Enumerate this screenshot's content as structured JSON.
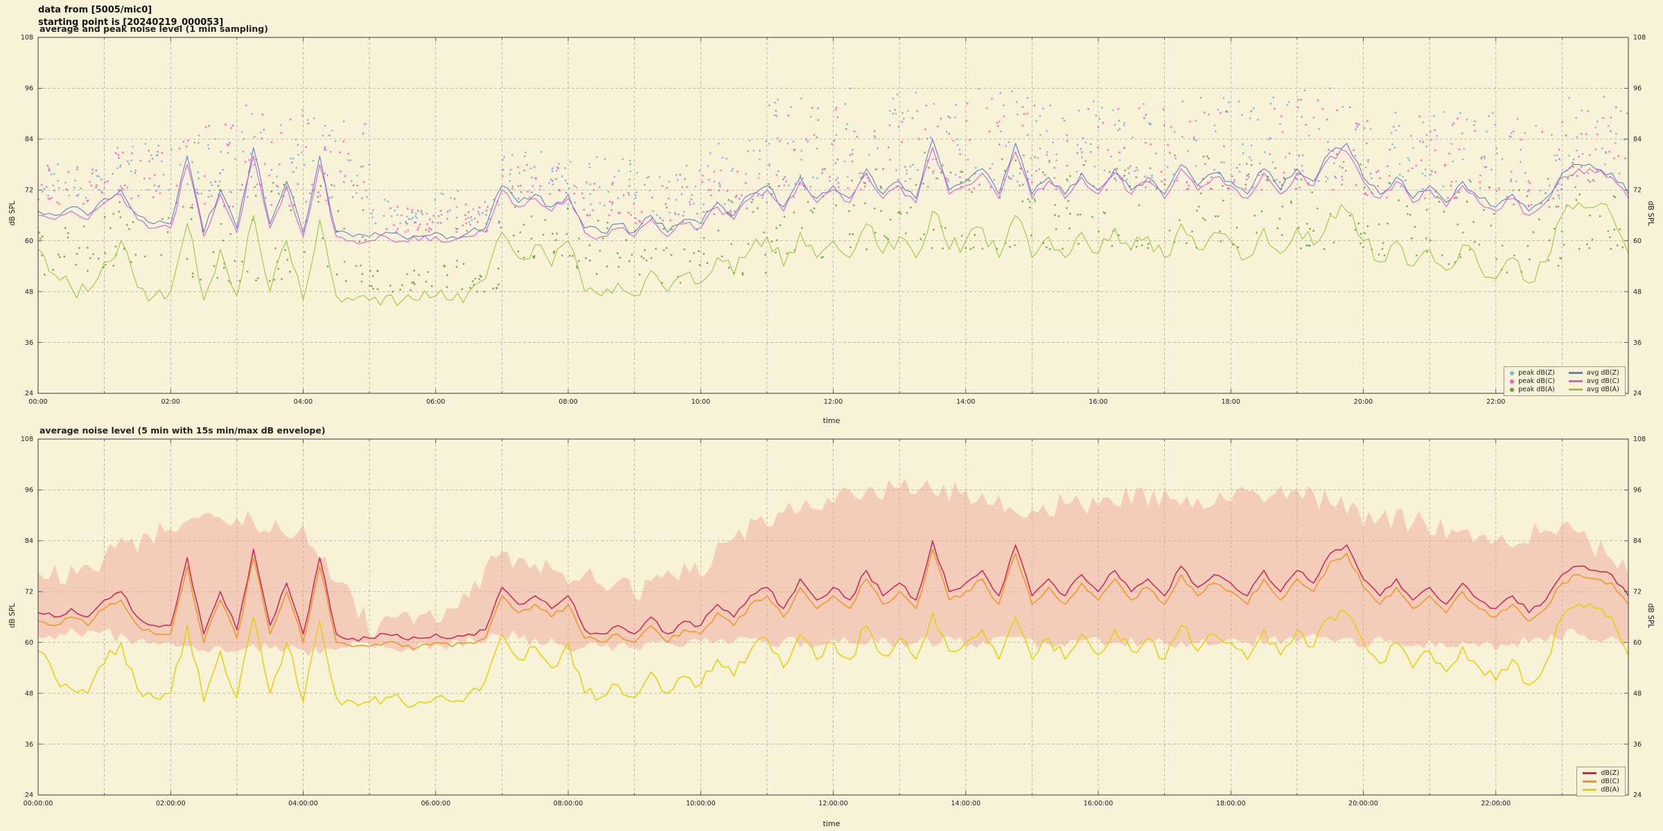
{
  "header": {
    "line1": "data from [5005/mic0]",
    "line2": "starting point is [20240219_000053]"
  },
  "chart_data": [
    {
      "type": "line",
      "title": "average and peak noise level (1 min sampling)",
      "xlabel": "time",
      "ylabel": "dB SPL",
      "ylabel_right": "dB SPL",
      "ylim": [
        24,
        108
      ],
      "yticks": [
        24,
        36,
        48,
        60,
        72,
        84,
        96,
        108
      ],
      "xlim_hours": [
        0,
        24
      ],
      "xtick_hours": [
        0,
        2,
        4,
        6,
        8,
        10,
        12,
        14,
        16,
        18,
        20,
        22
      ],
      "xtick_labels": [
        "00:00",
        "02:00",
        "04:00",
        "06:00",
        "08:00",
        "10:00",
        "12:00",
        "14:00",
        "16:00",
        "18:00",
        "20:00",
        "22:00"
      ],
      "x_step_hours": 0.25,
      "grid": true,
      "legend_position": "bottom-right",
      "scatter": [
        {
          "name": "peak dB(Z)",
          "color": "#74b2e0",
          "dots_per_hour": 26,
          "hourly_lo": [
            70,
            72,
            70,
            70,
            70,
            64,
            64,
            72,
            68,
            66,
            68,
            72,
            74,
            74,
            74,
            74,
            74,
            74,
            74,
            74,
            72,
            72,
            70,
            74
          ],
          "hourly_hi": [
            80,
            84,
            90,
            92,
            90,
            70,
            72,
            84,
            80,
            78,
            84,
            94,
            96,
            97,
            96,
            94,
            94,
            95,
            94,
            96,
            92,
            92,
            90,
            94
          ]
        },
        {
          "name": "peak dB(C)",
          "color": "#ee62c0",
          "dots_per_hour": 26,
          "hourly_lo": [
            68,
            70,
            68,
            68,
            68,
            62,
            62,
            70,
            66,
            64,
            66,
            70,
            72,
            72,
            72,
            72,
            72,
            72,
            72,
            72,
            70,
            70,
            68,
            72
          ],
          "hourly_hi": [
            78,
            82,
            88,
            90,
            88,
            68,
            70,
            82,
            78,
            76,
            82,
            92,
            94,
            95,
            94,
            92,
            92,
            93,
            92,
            94,
            90,
            90,
            88,
            92
          ]
        },
        {
          "name": "peak dB(A)",
          "color": "#63a33c",
          "dots_per_hour": 22,
          "hourly_lo": [
            52,
            54,
            50,
            50,
            50,
            48,
            48,
            56,
            52,
            50,
            52,
            56,
            58,
            58,
            58,
            58,
            58,
            58,
            58,
            58,
            56,
            54,
            52,
            58
          ],
          "hourly_hi": [
            66,
            70,
            74,
            76,
            74,
            54,
            56,
            72,
            66,
            64,
            70,
            78,
            80,
            82,
            80,
            78,
            78,
            80,
            78,
            82,
            76,
            74,
            72,
            78
          ]
        }
      ],
      "series": [
        {
          "name": "avg dB(Z)",
          "color": "#5b82c3",
          "lw": 1.1,
          "jitter": 1.0,
          "values": [
            67,
            66,
            68,
            66,
            70,
            72,
            66,
            64,
            64,
            80,
            62,
            72,
            63,
            82,
            64,
            74,
            62,
            80,
            62,
            61,
            61,
            62,
            61,
            61,
            62,
            61,
            62,
            63,
            73,
            69,
            71,
            68,
            71,
            63,
            62,
            64,
            62,
            66,
            62,
            65,
            64,
            69,
            66,
            71,
            73,
            68,
            75,
            70,
            73,
            70,
            77,
            71,
            74,
            70,
            84,
            72,
            74,
            77,
            71,
            83,
            71,
            75,
            71,
            76,
            72,
            77,
            72,
            75,
            71,
            78,
            73,
            76,
            74,
            71,
            77,
            72,
            77,
            74,
            81,
            83,
            75,
            71,
            75,
            70,
            73,
            69,
            74,
            70,
            68,
            71,
            67,
            70,
            76,
            78,
            77,
            76,
            71
          ]
        },
        {
          "name": "avg dB(C)",
          "color": "#d65fd2",
          "lw": 1.1,
          "jitter": 1.0,
          "values": [
            66,
            65,
            67,
            65,
            69,
            71,
            65,
            63,
            63,
            78,
            61,
            71,
            62,
            80,
            63,
            73,
            61,
            78,
            61,
            60,
            60,
            61,
            60,
            60,
            61,
            60,
            61,
            62,
            72,
            68,
            70,
            67,
            70,
            62,
            61,
            63,
            61,
            65,
            61,
            64,
            63,
            68,
            65,
            70,
            72,
            67,
            74,
            69,
            72,
            69,
            76,
            70,
            73,
            69,
            82,
            71,
            73,
            76,
            70,
            81,
            70,
            74,
            70,
            75,
            71,
            76,
            71,
            74,
            70,
            77,
            72,
            75,
            73,
            70,
            76,
            71,
            76,
            73,
            80,
            81,
            74,
            70,
            74,
            69,
            72,
            68,
            73,
            69,
            67,
            70,
            66,
            69,
            75,
            77,
            76,
            75,
            70
          ]
        },
        {
          "name": "avg dB(A)",
          "color": "#96c83d",
          "lw": 1.1,
          "jitter": 2.2,
          "values": [
            58,
            52,
            49,
            48,
            55,
            60,
            49,
            47,
            48,
            64,
            46,
            58,
            47,
            66,
            48,
            60,
            46,
            65,
            47,
            46,
            46,
            47,
            46,
            46,
            47,
            46,
            48,
            51,
            62,
            56,
            59,
            54,
            60,
            48,
            47,
            50,
            47,
            53,
            48,
            52,
            50,
            56,
            52,
            58,
            61,
            54,
            62,
            56,
            60,
            56,
            64,
            57,
            61,
            56,
            67,
            58,
            60,
            63,
            56,
            66,
            56,
            61,
            56,
            62,
            57,
            63,
            58,
            61,
            56,
            64,
            58,
            62,
            60,
            56,
            63,
            57,
            63,
            59,
            66,
            67,
            60,
            55,
            60,
            54,
            58,
            53,
            59,
            54,
            51,
            56,
            50,
            55,
            66,
            69,
            68,
            66,
            57
          ]
        }
      ]
    },
    {
      "type": "line",
      "title": "average noise level (5 min with 15s min/max dB envelope)",
      "xlabel": "time",
      "ylabel": "dB SPL",
      "ylabel_right": "dB SPL",
      "ylim": [
        24,
        108
      ],
      "yticks": [
        24,
        36,
        48,
        60,
        72,
        84,
        96,
        108
      ],
      "xlim_hours": [
        0,
        24
      ],
      "xtick_hours": [
        0,
        2,
        4,
        6,
        8,
        10,
        12,
        14,
        16,
        18,
        20,
        22
      ],
      "xtick_labels": [
        "00:00:00",
        "02:00:00",
        "04:00:00",
        "06:00:00",
        "08:00:00",
        "10:00:00",
        "12:00:00",
        "14:00:00",
        "16:00:00",
        "18:00:00",
        "20:00:00",
        "22:00:00"
      ],
      "x_step_hours": 0.25,
      "grid": true,
      "legend_position": "bottom-right",
      "band": {
        "name": "15s min/max dB envelope",
        "color": "#ef9f96",
        "opacity": 0.45,
        "hourly_max": [
          74,
          80,
          88,
          90,
          86,
          64,
          66,
          80,
          76,
          72,
          78,
          90,
          94,
          96,
          95,
          92,
          93,
          95,
          94,
          96,
          90,
          88,
          84,
          88,
          78
        ],
        "hourly_min": [
          62,
          62,
          59,
          59,
          58,
          59,
          59,
          62,
          59,
          59,
          60,
          60,
          60,
          60,
          60,
          60,
          60,
          60,
          60,
          61,
          60,
          60,
          59,
          62,
          60
        ]
      },
      "series": [
        {
          "name": "dB(Z)",
          "color": "#cd2255",
          "lw": 1.5,
          "jitter": 0.7,
          "values": [
            67,
            66,
            68,
            66,
            70,
            72,
            66,
            64,
            64,
            80,
            62,
            72,
            63,
            82,
            64,
            74,
            62,
            80,
            62,
            61,
            61,
            62,
            61,
            61,
            62,
            61,
            62,
            63,
            73,
            69,
            71,
            68,
            71,
            63,
            62,
            64,
            62,
            66,
            62,
            65,
            64,
            69,
            66,
            71,
            73,
            68,
            75,
            70,
            73,
            70,
            77,
            71,
            74,
            70,
            84,
            72,
            74,
            77,
            71,
            83,
            71,
            75,
            71,
            76,
            72,
            77,
            72,
            75,
            71,
            78,
            73,
            76,
            74,
            71,
            77,
            72,
            77,
            74,
            81,
            83,
            75,
            71,
            75,
            70,
            73,
            69,
            74,
            70,
            68,
            71,
            67,
            70,
            76,
            78,
            77,
            76,
            71
          ]
        },
        {
          "name": "dB(C)",
          "color": "#f29422",
          "lw": 1.5,
          "jitter": 0.7,
          "values": [
            65,
            64,
            66,
            64,
            68,
            70,
            64,
            62,
            62,
            78,
            60,
            70,
            61,
            80,
            62,
            72,
            60,
            78,
            60,
            59,
            59,
            60,
            59,
            59,
            60,
            59,
            60,
            61,
            71,
            67,
            69,
            66,
            69,
            61,
            60,
            62,
            60,
            64,
            60,
            63,
            62,
            67,
            64,
            69,
            71,
            66,
            73,
            68,
            71,
            68,
            75,
            69,
            72,
            68,
            82,
            70,
            72,
            75,
            69,
            81,
            69,
            73,
            69,
            74,
            70,
            75,
            70,
            73,
            69,
            76,
            71,
            74,
            72,
            69,
            75,
            70,
            75,
            72,
            79,
            81,
            73,
            69,
            73,
            68,
            71,
            67,
            72,
            68,
            66,
            69,
            65,
            68,
            74,
            76,
            75,
            74,
            69
          ]
        },
        {
          "name": "dB(A)",
          "color": "#e6cf00",
          "lw": 1.5,
          "jitter": 1.6,
          "values": [
            58,
            52,
            49,
            48,
            55,
            60,
            49,
            47,
            48,
            64,
            46,
            58,
            47,
            66,
            48,
            60,
            46,
            65,
            47,
            46,
            46,
            47,
            46,
            46,
            47,
            46,
            48,
            51,
            62,
            56,
            59,
            54,
            60,
            48,
            47,
            50,
            47,
            53,
            48,
            52,
            50,
            56,
            52,
            58,
            61,
            54,
            62,
            56,
            60,
            56,
            64,
            57,
            61,
            56,
            67,
            58,
            60,
            63,
            56,
            66,
            56,
            61,
            56,
            62,
            57,
            63,
            58,
            61,
            56,
            64,
            58,
            62,
            60,
            56,
            63,
            57,
            63,
            59,
            66,
            67,
            60,
            55,
            60,
            54,
            58,
            53,
            59,
            54,
            51,
            56,
            50,
            55,
            66,
            69,
            68,
            66,
            57
          ]
        }
      ]
    }
  ]
}
